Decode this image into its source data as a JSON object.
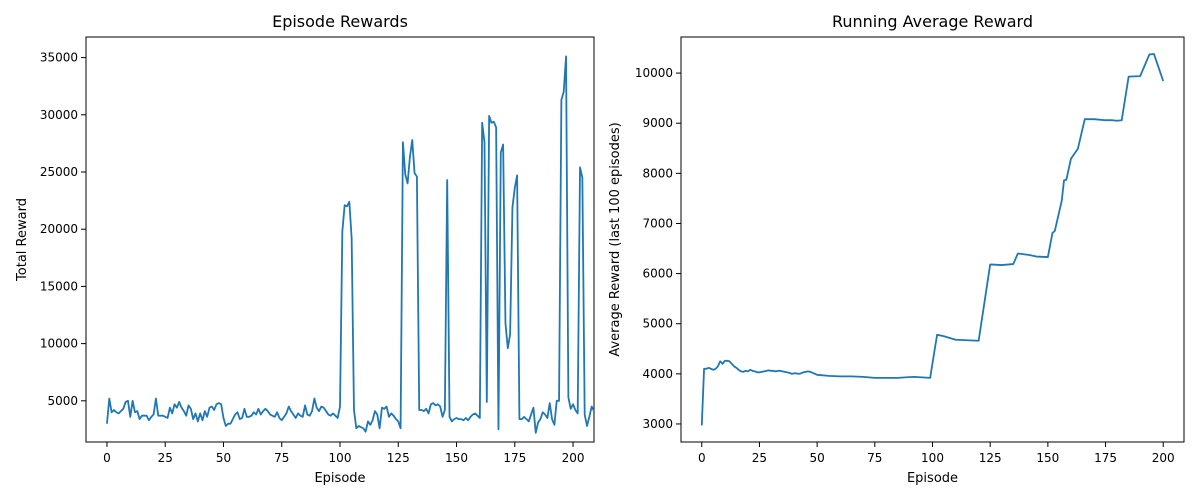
{
  "chart_data": [
    {
      "type": "line",
      "title": "Episode Rewards",
      "xlabel": "Episode",
      "ylabel": "Total Reward",
      "xlim": [
        -9,
        209
      ],
      "ylim": [
        1400,
        36800
      ],
      "xticks": [
        0,
        25,
        50,
        75,
        100,
        125,
        150,
        175,
        200
      ],
      "yticks": [
        5000,
        10000,
        15000,
        20000,
        25000,
        30000,
        35000
      ],
      "grid": false,
      "color": "#1f77b4",
      "x_start": 0,
      "series": [
        {
          "values": [
            3000,
            5200,
            4000,
            4200,
            4000,
            3900,
            4100,
            4300,
            4900,
            5000,
            3600,
            5000,
            4000,
            4100,
            3400,
            3700,
            3700,
            3700,
            3300,
            3600,
            3800,
            5200,
            3700,
            3700,
            3700,
            3600,
            3500,
            4400,
            3900,
            4700,
            4400,
            4900,
            4400,
            4100,
            3700,
            4600,
            4300,
            3400,
            3900,
            3200,
            3900,
            3300,
            4100,
            3600,
            4400,
            4500,
            4200,
            4700,
            4800,
            4700,
            3500,
            2800,
            3000,
            3000,
            3400,
            3800,
            4000,
            3400,
            3500,
            4300,
            3600,
            3600,
            3700,
            4000,
            3800,
            4300,
            3800,
            4100,
            4300,
            4100,
            3800,
            3700,
            3600,
            4000,
            3500,
            3300,
            3600,
            3900,
            4500,
            4100,
            3800,
            3500,
            3900,
            3700,
            3600,
            4600,
            3800,
            3700,
            4100,
            5200,
            4400,
            4100,
            4500,
            4400,
            4100,
            3800,
            3700,
            3900,
            3700,
            3500,
            4500,
            19800,
            22100,
            22000,
            22400,
            19200,
            4200,
            2600,
            2800,
            2700,
            2600,
            2300,
            3200,
            2900,
            3300,
            4100,
            3800,
            2600,
            4400,
            4300,
            4500,
            3600,
            3900,
            3700,
            3400,
            3200,
            2600,
            27600,
            24800,
            24000,
            26300,
            27800,
            24900,
            24600,
            4200,
            4200,
            4100,
            4300,
            3900,
            4700,
            4800,
            4600,
            4700,
            4500,
            3600,
            4200,
            24300,
            3600,
            3200,
            3400,
            3500,
            3400,
            3400,
            3300,
            3500,
            3300,
            3600,
            3800,
            3900,
            3700,
            3500,
            29300,
            27600,
            4900,
            29900,
            29300,
            29400,
            28900,
            2500,
            26700,
            27400,
            11800,
            9600,
            10800,
            21900,
            23600,
            24700,
            3400,
            3400,
            3600,
            3400,
            3200,
            3800,
            4400,
            2200,
            3100,
            3400,
            4000,
            3800,
            3500,
            4800,
            3400,
            2900,
            5000,
            5000,
            31300,
            32000,
            35100,
            5300,
            4300,
            4700,
            4200,
            3900,
            25400,
            24500,
            3800,
            2800,
            3600,
            4500,
            4100
          ]
        }
      ]
    },
    {
      "type": "line",
      "title": "Running Average Reward",
      "xlabel": "Episode",
      "ylabel": "Average Reward (last 100 episodes)",
      "xlim": [
        -9,
        209
      ],
      "ylim": [
        2640,
        10720
      ],
      "xticks": [
        0,
        25,
        50,
        75,
        100,
        125,
        150,
        175,
        200
      ],
      "yticks": [
        3000,
        4000,
        5000,
        6000,
        7000,
        8000,
        9000,
        10000
      ],
      "grid": false,
      "color": "#1f77b4",
      "series": [
        {
          "points": [
            [
              0,
              2970
            ],
            [
              1,
              4100
            ],
            [
              2,
              4100
            ],
            [
              3,
              4120
            ],
            [
              4,
              4100
            ],
            [
              5,
              4080
            ],
            [
              6,
              4100
            ],
            [
              7,
              4150
            ],
            [
              8,
              4250
            ],
            [
              9,
              4200
            ],
            [
              10,
              4260
            ],
            [
              11,
              4260
            ],
            [
              12,
              4250
            ],
            [
              13,
              4200
            ],
            [
              14,
              4150
            ],
            [
              15,
              4120
            ],
            [
              16,
              4080
            ],
            [
              17,
              4050
            ],
            [
              18,
              4040
            ],
            [
              19,
              4060
            ],
            [
              20,
              4050
            ],
            [
              21,
              4080
            ],
            [
              22,
              4060
            ],
            [
              23,
              4050
            ],
            [
              24,
              4030
            ],
            [
              25,
              4030
            ],
            [
              26,
              4040
            ],
            [
              27,
              4050
            ],
            [
              28,
              4060
            ],
            [
              29,
              4070
            ],
            [
              30,
              4060
            ],
            [
              31,
              4060
            ],
            [
              32,
              4050
            ],
            [
              33,
              4060
            ],
            [
              34,
              4060
            ],
            [
              35,
              4050
            ],
            [
              36,
              4040
            ],
            [
              37,
              4030
            ],
            [
              38,
              4020
            ],
            [
              39,
              4000
            ],
            [
              40,
              4010
            ],
            [
              41,
              4010
            ],
            [
              42,
              4000
            ],
            [
              43,
              4010
            ],
            [
              44,
              4030
            ],
            [
              45,
              4040
            ],
            [
              46,
              4050
            ],
            [
              47,
              4040
            ],
            [
              48,
              4020
            ],
            [
              49,
              4000
            ],
            [
              50,
              3980
            ],
            [
              55,
              3960
            ],
            [
              60,
              3950
            ],
            [
              65,
              3950
            ],
            [
              70,
              3940
            ],
            [
              75,
              3920
            ],
            [
              80,
              3920
            ],
            [
              85,
              3920
            ],
            [
              88,
              3930
            ],
            [
              92,
              3940
            ],
            [
              99,
              3920
            ],
            [
              101,
              4500
            ],
            [
              102,
              4780
            ],
            [
              105,
              4750
            ],
            [
              110,
              4680
            ],
            [
              115,
              4670
            ],
            [
              120,
              4660
            ],
            [
              125,
              6180
            ],
            [
              126,
              6180
            ],
            [
              130,
              6170
            ],
            [
              135,
              6190
            ],
            [
              137,
              6400
            ],
            [
              142,
              6370
            ],
            [
              145,
              6340
            ],
            [
              150,
              6330
            ],
            [
              152,
              6810
            ],
            [
              153,
              6850
            ],
            [
              156,
              7450
            ],
            [
              157,
              7860
            ],
            [
              158,
              7870
            ],
            [
              160,
              8290
            ],
            [
              163,
              8490
            ],
            [
              166,
              9080
            ],
            [
              170,
              9080
            ],
            [
              175,
              9060
            ],
            [
              178,
              9060
            ],
            [
              180,
              9050
            ],
            [
              182,
              9060
            ],
            [
              185,
              9930
            ],
            [
              190,
              9940
            ],
            [
              194,
              10370
            ],
            [
              196,
              10380
            ],
            [
              200,
              9840
            ]
          ]
        }
      ]
    }
  ]
}
